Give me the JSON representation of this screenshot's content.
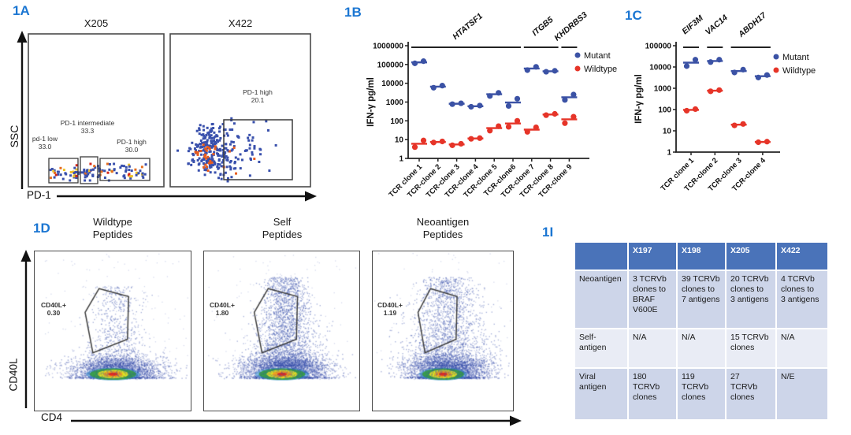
{
  "colors": {
    "panel_label": "#1b76d2",
    "mutant_blue": "#3b52a5",
    "wildtype_red": "#e63428",
    "flow_blue": "#3950ac",
    "flow_yellow": "#eec228",
    "flow_orange": "#e56d1f",
    "flow_red": "#d4271b",
    "table_header_bg": "#4a73b9",
    "table_row_dark": "#cdd5e9",
    "table_row_light": "#e9ecf5"
  },
  "panel_a": {
    "label": "1A",
    "plot1_title": "X205",
    "plot2_title": "X422",
    "y_axis": "SSC",
    "x_axis": "PD-1",
    "gates": {
      "low_name": "pd-1 low",
      "low_value": "33.0",
      "int_name": "PD-1 intermediate",
      "int_value": "33.3",
      "high_name": "PD-1 high",
      "high_value": "30.0",
      "x422_name": "PD-1 high",
      "x422_value": "20.1"
    }
  },
  "panel_b": {
    "label": "1B"
  },
  "panel_c": {
    "label": "1C"
  },
  "panel_d": {
    "label": "1D",
    "y_axis": "CD40L",
    "x_axis": "CD4",
    "plots": [
      {
        "title_line1": "Wildtype",
        "title_line2": "Peptides",
        "gate_name": "CD40L+",
        "gate_value": "0.30"
      },
      {
        "title_line1": "Self",
        "title_line2": "Peptides",
        "gate_name": "CD40L+",
        "gate_value": "1.80"
      },
      {
        "title_line1": "Neoantigen",
        "title_line2": "Peptides",
        "gate_name": "CD40L+",
        "gate_value": "1.19"
      }
    ]
  },
  "panel_i": {
    "label": "1I",
    "table": {
      "columns": [
        "",
        "X197",
        "X198",
        "X205",
        "X422"
      ],
      "rows": [
        {
          "label": "Neoantigen",
          "cells": [
            "3 TCRVb\nclones to\nBRAF\nV600E",
            "39 TCRVb\nclones to\n7 antigens",
            "20 TCRVb\nclones to\n3 antigens",
            "4 TCRVb\nclones to\n3 antigens"
          ]
        },
        {
          "label": "Self-\nantigen",
          "cells": [
            "N/A",
            "N/A",
            "15 TCRVb\nclones",
            "N/A"
          ]
        },
        {
          "label": "Viral\nantigen",
          "cells": [
            "180\nTCRVb\nclones",
            "119\nTCRVb\nclones",
            "27\nTCRVb\nclones",
            "N/E"
          ]
        }
      ]
    }
  },
  "chart_data": [
    {
      "id": "1B",
      "type": "scatter",
      "log_y": true,
      "ylabel": "IFN-γ pg/ml",
      "ylim": [
        1,
        1000000
      ],
      "yticks": [
        1,
        10,
        100,
        1000,
        10000,
        100000,
        1000000
      ],
      "categories": [
        "TCR clone 1",
        "TCR-clone 2",
        "TCR-clone 3",
        "TCR-clone 4",
        "TCR-clone 5",
        "TCR-clone6",
        "TCR-clone 7",
        "TCR-clone 8",
        "TCR-clone 9"
      ],
      "gene_groups": [
        {
          "gene": "HTATSF1",
          "from": 0,
          "to": 5
        },
        {
          "gene": "ITGB5",
          "from": 6,
          "to": 7
        },
        {
          "gene": "KHDRBS3",
          "from": 8,
          "to": 8
        }
      ],
      "legend_position": "right",
      "series": [
        {
          "name": "Mutant",
          "color": "#3b52a5",
          "pairs": [
            [
              115000,
              150000
            ],
            [
              5800,
              7500
            ],
            [
              770,
              860
            ],
            [
              560,
              650
            ],
            [
              2100,
              3100
            ],
            [
              620,
              1500
            ],
            [
              50000,
              75000
            ],
            [
              41000,
              46000
            ],
            [
              1300,
              2500
            ]
          ],
          "means": [
            130000,
            6600,
            815,
            600,
            2600,
            950,
            61000,
            43500,
            1800
          ]
        },
        {
          "name": "Wildtype",
          "color": "#e63428",
          "pairs": [
            [
              4,
              9
            ],
            [
              7,
              8
            ],
            [
              5,
              6
            ],
            [
              11,
              12
            ],
            [
              30,
              52
            ],
            [
              48,
              100
            ],
            [
              26,
              45
            ],
            [
              200,
              235
            ],
            [
              75,
              165
            ]
          ],
          "means": [
            6,
            7.5,
            5.5,
            11.5,
            41,
            72,
            34,
            217,
            120
          ]
        }
      ]
    },
    {
      "id": "1C",
      "type": "scatter",
      "log_y": true,
      "ylabel": "IFN-γ pg/ml",
      "ylim": [
        1,
        100000
      ],
      "yticks": [
        1,
        10,
        100,
        1000,
        10000,
        100000
      ],
      "categories": [
        "TCR clone 1",
        "TCR-clone 2",
        "TCR-clone 3",
        "TCR-clone 4"
      ],
      "gene_groups": [
        {
          "gene": "EIF3M",
          "from": 0,
          "to": 0
        },
        {
          "gene": "VAC14",
          "from": 1,
          "to": 1
        },
        {
          "gene": "ABDH17",
          "from": 2,
          "to": 3
        }
      ],
      "legend_position": "right",
      "series": [
        {
          "name": "Mutant",
          "color": "#3b52a5",
          "pairs": [
            [
              11000,
              22000
            ],
            [
              17000,
              22000
            ],
            [
              5500,
              7500
            ],
            [
              3200,
              4200
            ]
          ],
          "means": [
            16000,
            19000,
            6400,
            3700
          ]
        },
        {
          "name": "Wildtype",
          "color": "#e63428",
          "pairs": [
            [
              88,
              105
            ],
            [
              720,
              820
            ],
            [
              18,
              21
            ],
            [
              2.9,
              3.1
            ]
          ],
          "means": [
            96,
            770,
            19.5,
            3
          ]
        }
      ]
    }
  ]
}
